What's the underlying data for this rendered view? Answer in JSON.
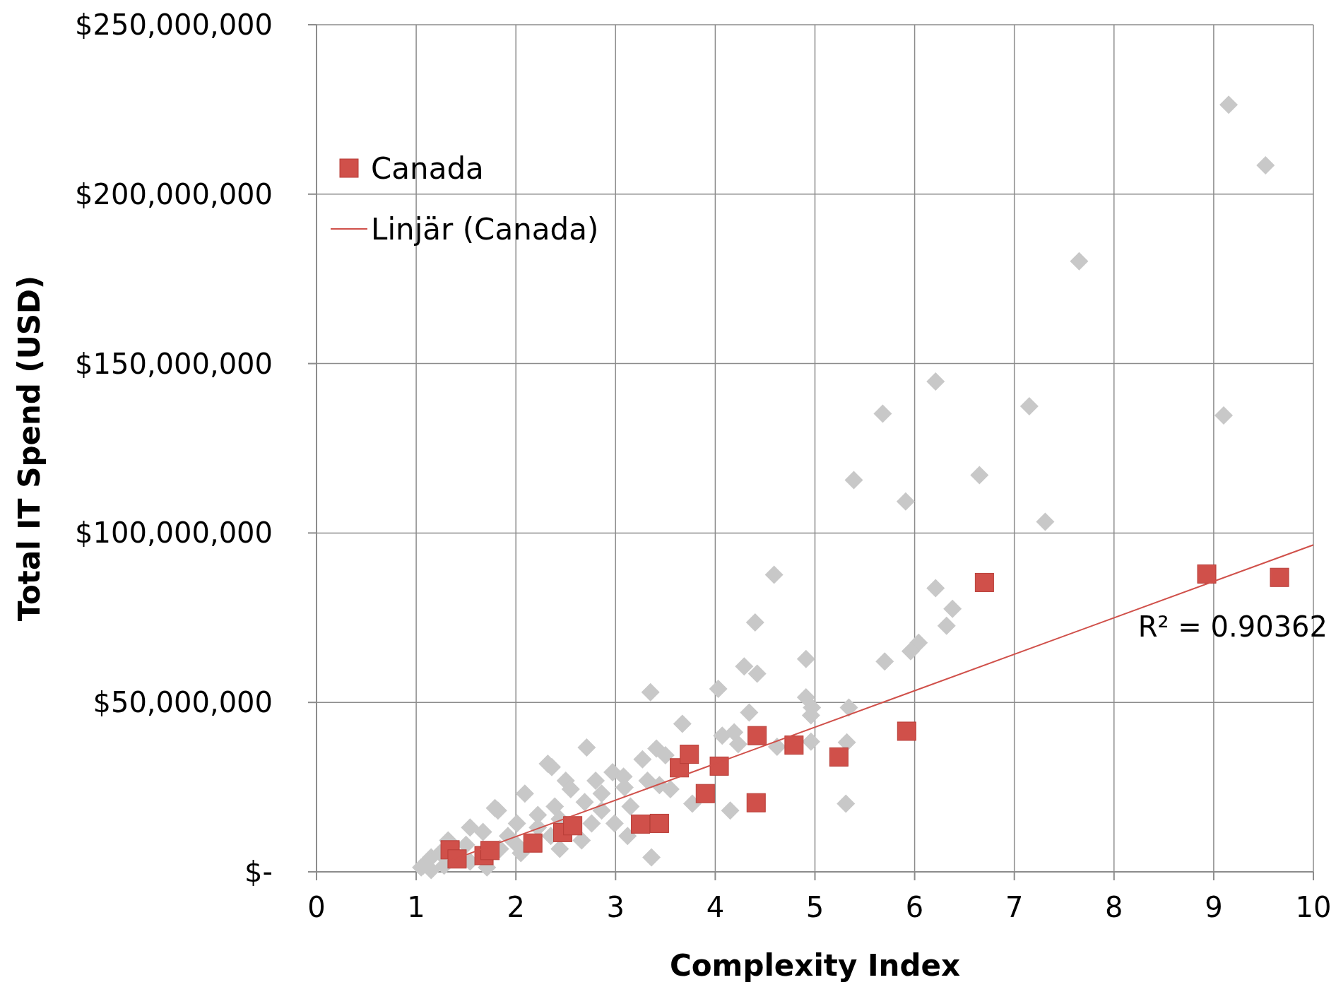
{
  "chart_data": {
    "type": "scatter",
    "xlabel": "Complexity Index",
    "ylabel": "Total IT Spend (USD)",
    "xlim": [
      0,
      10
    ],
    "xticks": [
      0,
      1,
      2,
      3,
      4,
      5,
      6,
      7,
      8,
      9,
      10
    ],
    "ylim": [
      0,
      250000000
    ],
    "yticks": [
      {
        "value": 0,
        "label": "$-"
      },
      {
        "value": 50000000,
        "label": "$50,000,000"
      },
      {
        "value": 100000000,
        "label": "$100,000,000"
      },
      {
        "value": 150000000,
        "label": "$150,000,000"
      },
      {
        "value": 200000000,
        "label": "$200,000,000"
      },
      {
        "value": 250000000,
        "label": "$250,000,000"
      }
    ],
    "grid": true,
    "legend": "top left",
    "annotations": [
      "R² = 0.90362"
    ],
    "series": [
      {
        "type": "scatter",
        "marker": "diamond",
        "color": "#c8c8c8",
        "x": [
          9.15,
          9.52,
          7.65,
          6.21,
          5.68,
          7.15,
          9.1,
          6.65,
          5.39,
          5.91,
          7.31,
          4.59,
          6.21,
          6.38,
          4.4,
          6.32,
          6.04,
          5.96,
          5.7,
          4.91,
          4.29,
          4.42,
          4.03,
          3.35,
          4.91,
          4.97,
          5.34,
          4.96,
          4.34,
          3.67,
          4.07,
          4.19,
          5.32,
          4.96,
          4.62,
          4.23,
          2.71,
          3.41,
          2.32,
          2.36,
          3.27,
          3.5,
          2.97,
          3.08,
          2.8,
          2.5,
          3.32,
          2.55,
          2.09,
          3.09,
          3.55,
          3.77,
          3.44,
          4.15,
          5.31,
          1.79,
          1.82,
          2.39,
          2.69,
          2.86,
          3.15,
          1.54,
          2.01,
          2.22,
          2.44,
          2.76,
          2.99,
          3.12,
          3.36,
          1.67,
          1.92,
          2.35,
          2.66,
          1.32,
          1.5,
          1.84,
          2.05,
          2.44,
          1.15,
          1.24,
          1.07,
          1.15,
          1.28,
          1.54,
          1.71,
          1.05,
          2.01,
          2.22,
          2.86
        ],
        "values": [
          226400000,
          208500000,
          180200000,
          144700000,
          135200000,
          137400000,
          134700000,
          117100000,
          115600000,
          109300000,
          103300000,
          87700000,
          83700000,
          77600000,
          73600000,
          72600000,
          67600000,
          65100000,
          62100000,
          62800000,
          60600000,
          58500000,
          54000000,
          53000000,
          51500000,
          48500000,
          48500000,
          46200000,
          47000000,
          43700000,
          40200000,
          41200000,
          38200000,
          38400000,
          36900000,
          37700000,
          36700000,
          36400000,
          31900000,
          30900000,
          33200000,
          34400000,
          29400000,
          28100000,
          26900000,
          26900000,
          26900000,
          24400000,
          23100000,
          24900000,
          24400000,
          20100000,
          25600000,
          18100000,
          20100000,
          18800000,
          18100000,
          19300000,
          20600000,
          18100000,
          19300000,
          13100000,
          14300000,
          16800000,
          15600000,
          14300000,
          14300000,
          10600000,
          4300000,
          11800000,
          10600000,
          10600000,
          9300000,
          9300000,
          8000000,
          6800000,
          5500000,
          6800000,
          4300000,
          5500000,
          1800000,
          500000,
          1800000,
          3000000,
          1300000,
          1300000,
          8000000,
          13100000,
          23100000
        ]
      },
      {
        "type": "scatter",
        "name": "Canada",
        "marker": "square",
        "color": "#d0504a",
        "x": [
          1.34,
          1.41,
          1.68,
          1.74,
          2.17,
          2.47,
          2.57,
          3.25,
          3.44,
          3.64,
          3.74,
          3.9,
          4.04,
          4.42,
          4.41,
          4.79,
          5.24,
          5.92,
          6.7,
          8.93,
          9.66
        ],
        "values": [
          6500000,
          3800000,
          4800000,
          6300000,
          8500000,
          11600000,
          13600000,
          14100000,
          14300000,
          30700000,
          34700000,
          23100000,
          31200000,
          40200000,
          20400000,
          37400000,
          33900000,
          41500000,
          85400000,
          87900000,
          86900000
        ]
      },
      {
        "type": "line",
        "name": "Linjär (Canada)",
        "marker": "none",
        "line_style": "solid",
        "color": "#d0504a",
        "x": [
          1.34,
          10
        ],
        "values": [
          3300000,
          96500000
        ]
      }
    ]
  }
}
